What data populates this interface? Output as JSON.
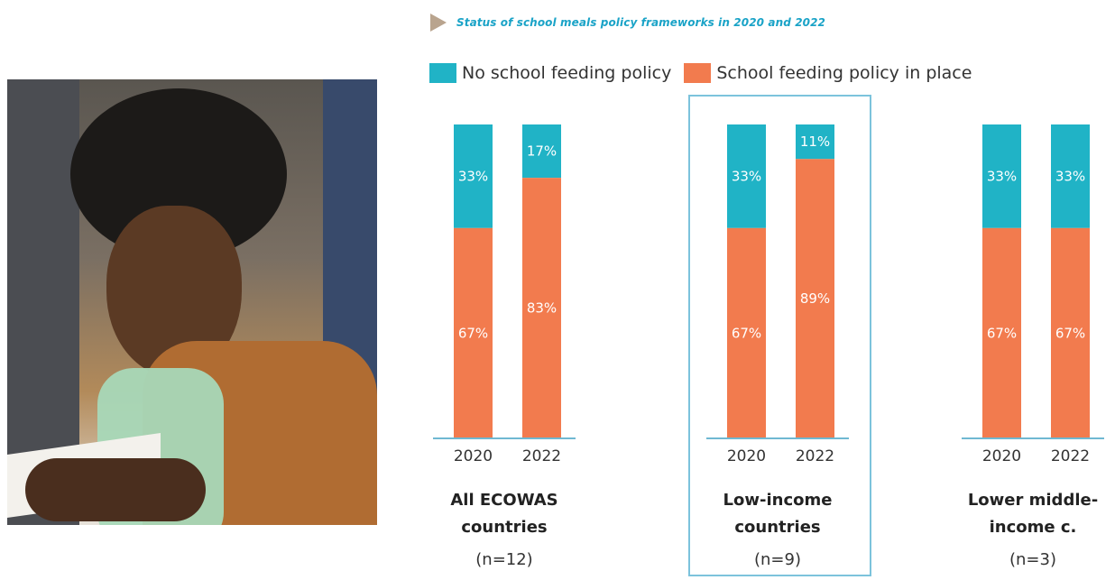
{
  "colors": {
    "no_policy": "#20b3c6",
    "policy": "#f27b4e",
    "axis": "#6fb9d2",
    "highlight": "#7cc3dc",
    "title": "#1aa3c7"
  },
  "photo": {
    "icon": "woman-writing-photo"
  },
  "chart_data": {
    "type": "bar",
    "stacked": true,
    "percent": true,
    "title": "Status of school meals policy frameworks in 2020 and 2022",
    "legend": [
      "No school feeding policy",
      "School feeding policy in place"
    ],
    "legend_position": "top",
    "ylim": [
      0,
      100
    ],
    "grid": false,
    "groups": [
      {
        "name_lines": [
          "All ECOWAS",
          "countries"
        ],
        "n_label": "(n=12)",
        "highlighted": false,
        "bars": [
          {
            "year": "2020",
            "no_policy": 33,
            "policy": 67,
            "no_policy_label": "33%",
            "policy_label": "67%"
          },
          {
            "year": "2022",
            "no_policy": 17,
            "policy": 83,
            "no_policy_label": "17%",
            "policy_label": "83%"
          }
        ]
      },
      {
        "name_lines": [
          "Low-income",
          "countries"
        ],
        "n_label": "(n=9)",
        "highlighted": true,
        "bars": [
          {
            "year": "2020",
            "no_policy": 33,
            "policy": 67,
            "no_policy_label": "33%",
            "policy_label": "67%"
          },
          {
            "year": "2022",
            "no_policy": 11,
            "policy": 89,
            "no_policy_label": "11%",
            "policy_label": "89%"
          }
        ]
      },
      {
        "name_lines": [
          "Lower middle-",
          "income c."
        ],
        "n_label": "(n=3)",
        "highlighted": false,
        "bars": [
          {
            "year": "2020",
            "no_policy": 33,
            "policy": 67,
            "no_policy_label": "33%",
            "policy_label": "67%"
          },
          {
            "year": "2022",
            "no_policy": 33,
            "policy": 67,
            "no_policy_label": "33%",
            "policy_label": "67%"
          }
        ]
      }
    ]
  }
}
